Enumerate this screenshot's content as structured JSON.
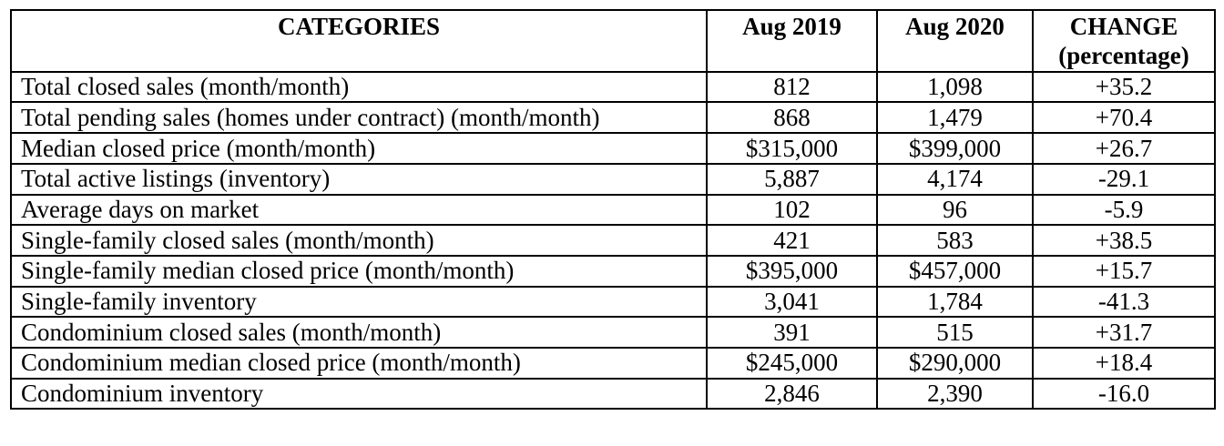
{
  "table": {
    "header": {
      "categories": "CATEGORIES",
      "aug2019": "Aug 2019",
      "aug2020": "Aug 2020",
      "change_line1": "CHANGE",
      "change_line2": "(percentage)"
    },
    "rows": [
      {
        "category": "Total closed sales (month/month)",
        "aug2019": "812",
        "aug2020": "1,098",
        "change": "+35.2"
      },
      {
        "category": "Total pending sales (homes under contract) (month/month)",
        "aug2019": "868",
        "aug2020": "1,479",
        "change": "+70.4"
      },
      {
        "category": "Median closed price (month/month)",
        "aug2019": "$315,000",
        "aug2020": "$399,000",
        "change": "+26.7"
      },
      {
        "category": "Total active listings (inventory)",
        "aug2019": "5,887",
        "aug2020": "4,174",
        "change": "-29.1"
      },
      {
        "category": "Average days on market",
        "aug2019": "102",
        "aug2020": "96",
        "change": "-5.9"
      },
      {
        "category": "Single-family closed sales (month/month)",
        "aug2019": "421",
        "aug2020": "583",
        "change": "+38.5"
      },
      {
        "category": "Single-family median closed price (month/month)",
        "aug2019": "$395,000",
        "aug2020": "$457,000",
        "change": "+15.7"
      },
      {
        "category": "Single-family inventory",
        "aug2019": "3,041",
        "aug2020": "1,784",
        "change": "-41.3"
      },
      {
        "category": "Condominium closed sales (month/month)",
        "aug2019": "391",
        "aug2020": "515",
        "change": "+31.7"
      },
      {
        "category": "Condominium median closed price (month/month)",
        "aug2019": "$245,000",
        "aug2020": "$290,000",
        "change": "+18.4"
      },
      {
        "category": "Condominium inventory",
        "aug2019": "2,846",
        "aug2020": "2,390",
        "change": "-16.0"
      }
    ],
    "colors": {
      "border": "#000000",
      "text": "#000000",
      "background": "#ffffff"
    }
  }
}
